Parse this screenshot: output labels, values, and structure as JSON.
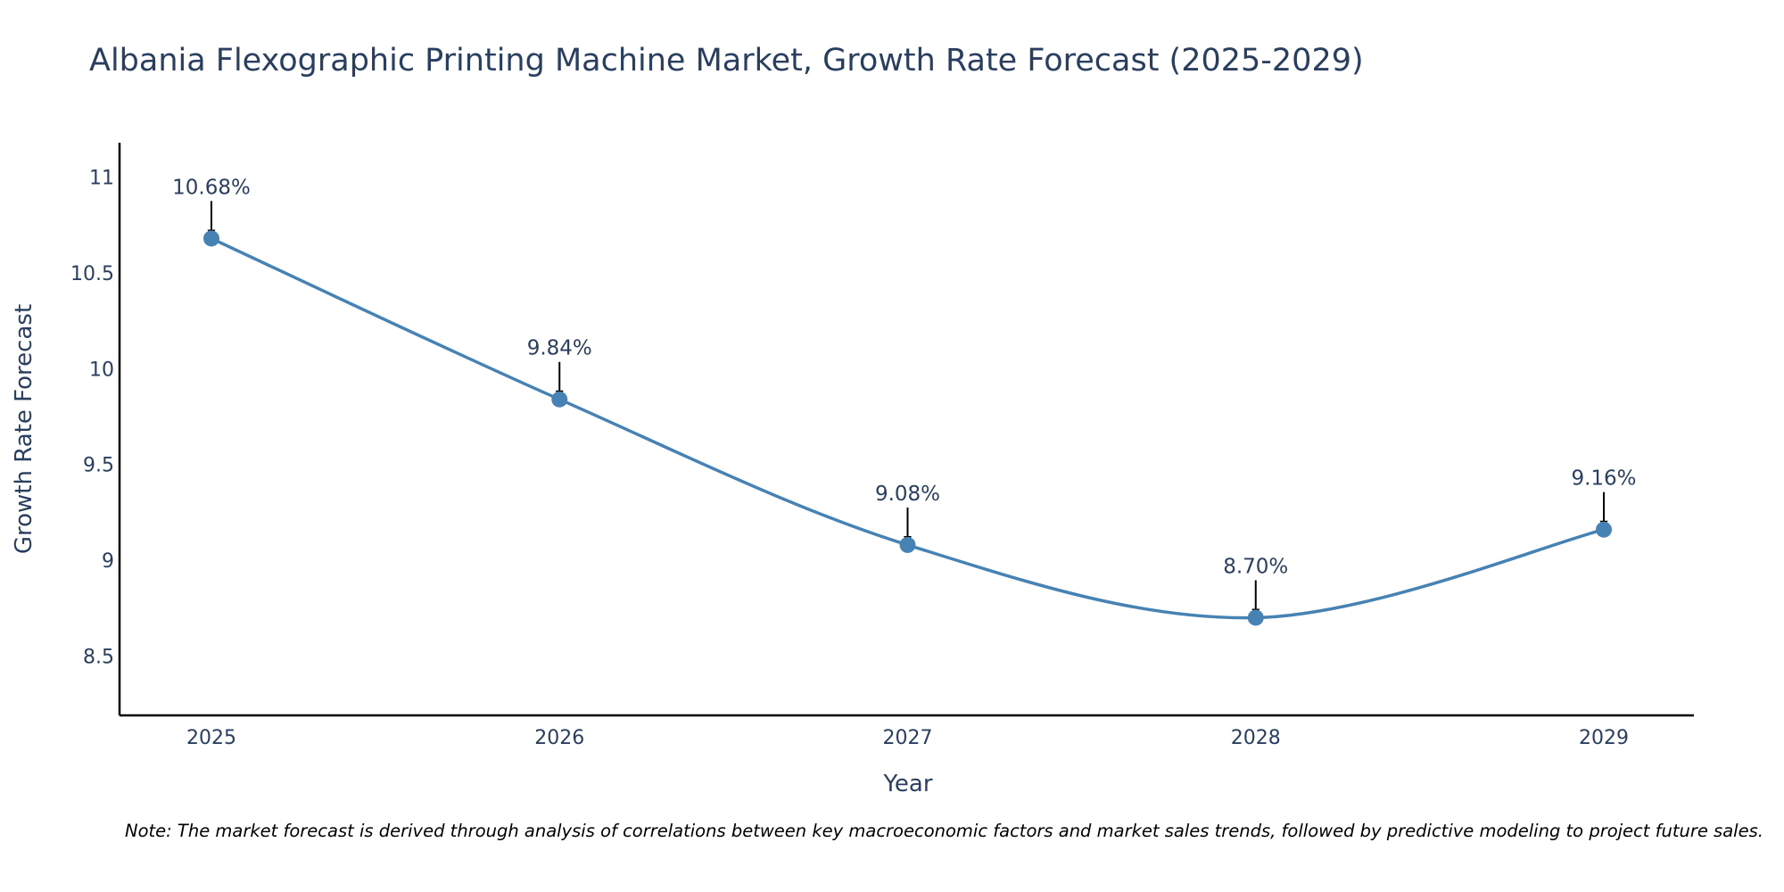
{
  "chart_data": {
    "type": "line",
    "title": "Albania Flexographic Printing Machine Market, Growth Rate Forecast (2025-2029)",
    "xlabel": "Year",
    "ylabel": "Growth Rate Forecast",
    "categories": [
      "2025",
      "2026",
      "2027",
      "2028",
      "2029"
    ],
    "series": [
      {
        "name": "Growth Rate Forecast",
        "values": [
          10.68,
          9.84,
          9.08,
          8.7,
          9.16
        ]
      }
    ],
    "data_labels": [
      "10.68%",
      "9.84%",
      "9.08%",
      "8.70%",
      "9.16%"
    ],
    "yticks": [
      "8.5",
      "9",
      "9.5",
      "10",
      "10.5",
      "11"
    ],
    "ytick_values": [
      8.5,
      9,
      9.5,
      10,
      10.5,
      11
    ],
    "ylim": [
      8.19,
      11.18
    ],
    "line_color": "#4682b4",
    "note": "Note: The market forecast is derived through analysis of correlations between key macroeconomic factors and market sales trends, followed by predictive modeling to project future sales."
  }
}
